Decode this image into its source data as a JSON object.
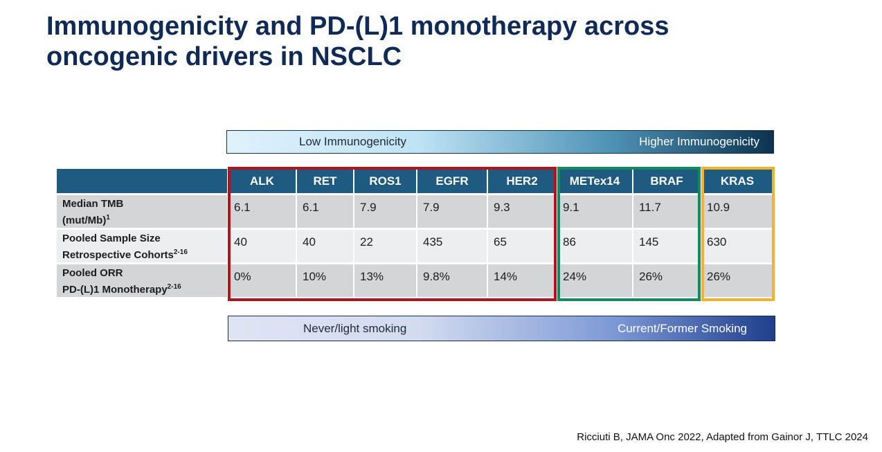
{
  "slide": {
    "title_line1": "Immunogenicity and PD-(L)1 monotherapy across",
    "title_line2": "oncogenic drivers in NSCLC"
  },
  "immunogenicity_bar": {
    "left_label": "Low Immunogenicity",
    "right_label": "Higher Immunogenicity"
  },
  "table": {
    "headers": [
      "ALK",
      "RET",
      "ROS1",
      "EGFR",
      "HER2",
      "METex14",
      "BRAF",
      "KRAS"
    ],
    "rows": [
      {
        "label_line1": "Median TMB",
        "label_line2": "(mut/Mb)",
        "superscript": "1",
        "values": [
          "6.1",
          "6.1",
          "7.9",
          "7.9",
          "9.3",
          "9.1",
          "11.7",
          "10.9"
        ]
      },
      {
        "label_line1": "Pooled Sample Size",
        "label_line2": "Retrospective Cohorts",
        "superscript": "2-16",
        "values": [
          "40",
          "40",
          "22",
          "435",
          "65",
          "86",
          "145",
          "630"
        ]
      },
      {
        "label_line1": "Pooled ORR",
        "label_line2": "PD-(L)1 Monotherapy",
        "superscript": "2-16",
        "values": [
          "0%",
          "10%",
          "13%",
          "9.8%",
          "14%",
          "24%",
          "26%",
          "26%"
        ]
      }
    ],
    "group_colors": {
      "red": "#b0141e",
      "green": "#13895e",
      "yellow": "#f0b429"
    },
    "header_color": "#1f5a80"
  },
  "smoking_bar": {
    "left_label": "Never/light smoking",
    "right_label": "Current/Former Smoking"
  },
  "citation": "Ricciuti B, JAMA Onc 2022, Adapted from Gainor J, TTLC 2024",
  "colors": {
    "title": "#0f2a55"
  }
}
